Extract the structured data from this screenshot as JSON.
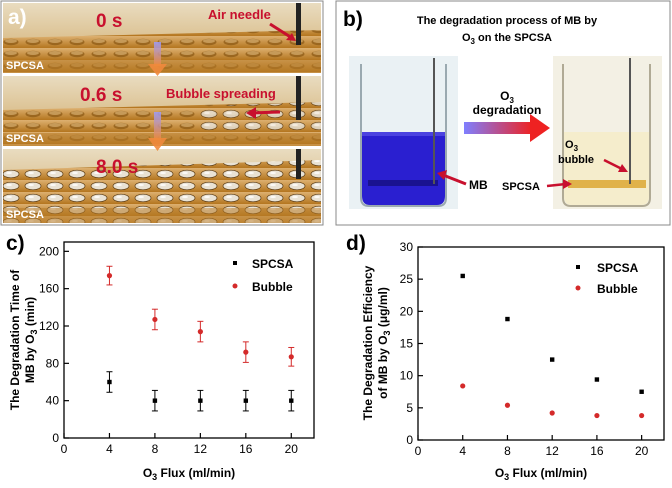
{
  "panel_a": {
    "label": "a)",
    "frames": [
      {
        "time": "0 s",
        "annotation": "Air needle",
        "substrate": "SPCSA"
      },
      {
        "time": "0.6 s",
        "annotation": "Bubble spreading",
        "substrate": "SPCSA"
      },
      {
        "time": "8.0 s",
        "annotation": "",
        "substrate": "SPCSA"
      }
    ]
  },
  "panel_b": {
    "label": "b)",
    "title_line1": "The degradation process of MB by",
    "title_line2_pre": "O",
    "title_line2_sub": "3",
    "title_line2_post": " on the SPCSA",
    "arrow_label_pre": "O",
    "arrow_label_sub": "3",
    "arrow_label_line2": "degradation",
    "left_label": "MB",
    "right_bubble_pre": "O",
    "right_bubble_sub": "3",
    "right_bubble_line2": "bubble",
    "right_substrate": "SPCSA"
  },
  "colors": {
    "spcsa": "#000000",
    "bubble": "#d42a2a",
    "annotation_red": "#c8102e",
    "mb_blue": "#2a1fd0",
    "plate_orange": "#c98a2c"
  },
  "chart_data": [
    {
      "type": "scatter",
      "panel_label": "c)",
      "x": [
        4,
        8,
        12,
        16,
        20
      ],
      "series": [
        {
          "name": "SPCSA",
          "values": [
            60,
            40,
            40,
            40,
            40
          ],
          "errors": [
            11,
            11,
            11,
            11,
            11
          ]
        },
        {
          "name": "Bubble",
          "values": [
            174,
            127,
            114,
            92,
            87
          ],
          "errors": [
            10,
            11,
            11,
            11,
            10
          ]
        }
      ],
      "xlabel_pre": "O",
      "xlabel_sub": "3",
      "xlabel_post": " Flux (ml/min)",
      "ylabel_line1": "The Degradation Time of",
      "ylabel_line2_pre": "MB by O",
      "ylabel_line2_sub": "3",
      "ylabel_line2_post": " (min)",
      "xlim": [
        0,
        22
      ],
      "ylim": [
        0,
        210
      ],
      "xticks": [
        0,
        4,
        8,
        12,
        16,
        20
      ],
      "yticks": [
        0,
        40,
        80,
        120,
        160,
        200
      ],
      "legend": "top-right",
      "grid": false
    },
    {
      "type": "scatter",
      "panel_label": "d)",
      "x": [
        4,
        8,
        12,
        16,
        20
      ],
      "series": [
        {
          "name": "SPCSA",
          "values": [
            25.5,
            18.8,
            12.5,
            9.4,
            7.5
          ]
        },
        {
          "name": "Bubble",
          "values": [
            8.4,
            5.4,
            4.2,
            3.8,
            3.8
          ]
        }
      ],
      "xlabel_pre": "O",
      "xlabel_sub": "3",
      "xlabel_post": " Flux (ml/min)",
      "ylabel_line1": "The Degradation Efficiency",
      "ylabel_line2_pre": "of MB by O",
      "ylabel_line2_sub": "3",
      "ylabel_line2_post": " (μg/ml)",
      "xlim": [
        0,
        22
      ],
      "ylim": [
        0,
        30
      ],
      "xticks": [
        0,
        4,
        8,
        12,
        16,
        20
      ],
      "yticks": [
        0,
        5,
        10,
        15,
        20,
        25,
        30
      ],
      "legend": "top-right",
      "grid": false
    }
  ]
}
